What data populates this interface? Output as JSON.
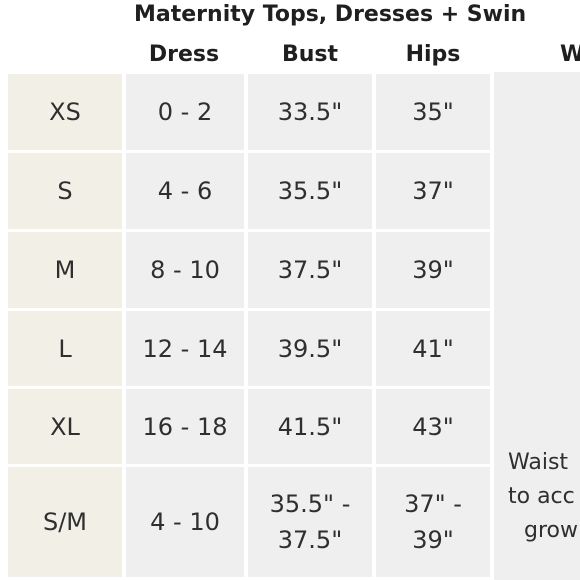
{
  "title": "Maternity Tops, Dresses + Swin",
  "headers": {
    "dress": "Dress",
    "bust": "Bust",
    "hips": "Hips",
    "fourth": "W"
  },
  "rows": [
    {
      "size": "XS",
      "dress": "0 - 2",
      "bust": "33.5\"",
      "hips": "35\""
    },
    {
      "size": "S",
      "dress": "4 - 6",
      "bust": "35.5\"",
      "hips": "37\""
    },
    {
      "size": "M",
      "dress": "8 - 10",
      "bust": "37.5\"",
      "hips": "39\""
    },
    {
      "size": "L",
      "dress": "12 - 14",
      "bust": "39.5\"",
      "hips": "41\""
    },
    {
      "size": "XL",
      "dress": "16 - 18",
      "bust": "41.5\"",
      "hips": "43\""
    },
    {
      "size": "S/M",
      "dress": "4 - 10",
      "bust": "35.5\" - 37.5\"",
      "bust_line1": "35.5\" -",
      "bust_line2": "37.5\"",
      "hips": "37\" - 39\"",
      "hips_line1": "37\" -",
      "hips_line2": "39\""
    }
  ],
  "note": {
    "line1": "Waist",
    "line2": "to acc",
    "line3": "grow"
  },
  "colors": {
    "size_col_bg": "#f1efe6",
    "cell_bg": "#efefef",
    "text": "#2f2f2f"
  }
}
